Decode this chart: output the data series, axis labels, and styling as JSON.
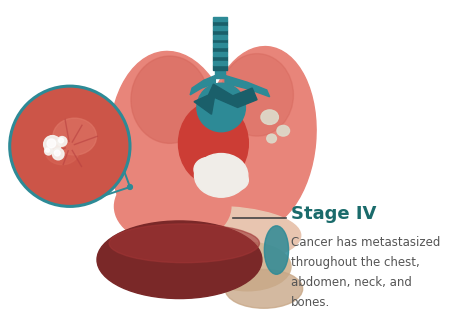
{
  "bg_color": "#ffffff",
  "title": "Stage IV",
  "title_color": "#1a6b6b",
  "title_fontsize": 13,
  "body_text": "Cancer has metastasized\nthroughout the chest,\nabdomen, neck, and\nbones.",
  "body_fontsize": 8.5,
  "body_color": "#555555",
  "lung_color": "#e8857a",
  "lung_inner_color": "#d4655a",
  "lung_highlight": "#f0a090",
  "heart_color": "#cc3d35",
  "trachea_color": "#2d8a96",
  "trachea_dark": "#1a5f6a",
  "liver_color": "#7a2828",
  "liver_mid": "#a03535",
  "stomach_color": "#d4b898",
  "diaphragm_color": "#e8c5b0",
  "zoom_edge_color": "#2d8a96",
  "zoom_fill_color": "#cc5548",
  "zoom_tissue_color": "#e07868",
  "lesion_white": "#f0ede8",
  "annotation_color": "#2d8a96",
  "spot_color": "#ddd8c8",
  "annotation_line_color": "#444444"
}
